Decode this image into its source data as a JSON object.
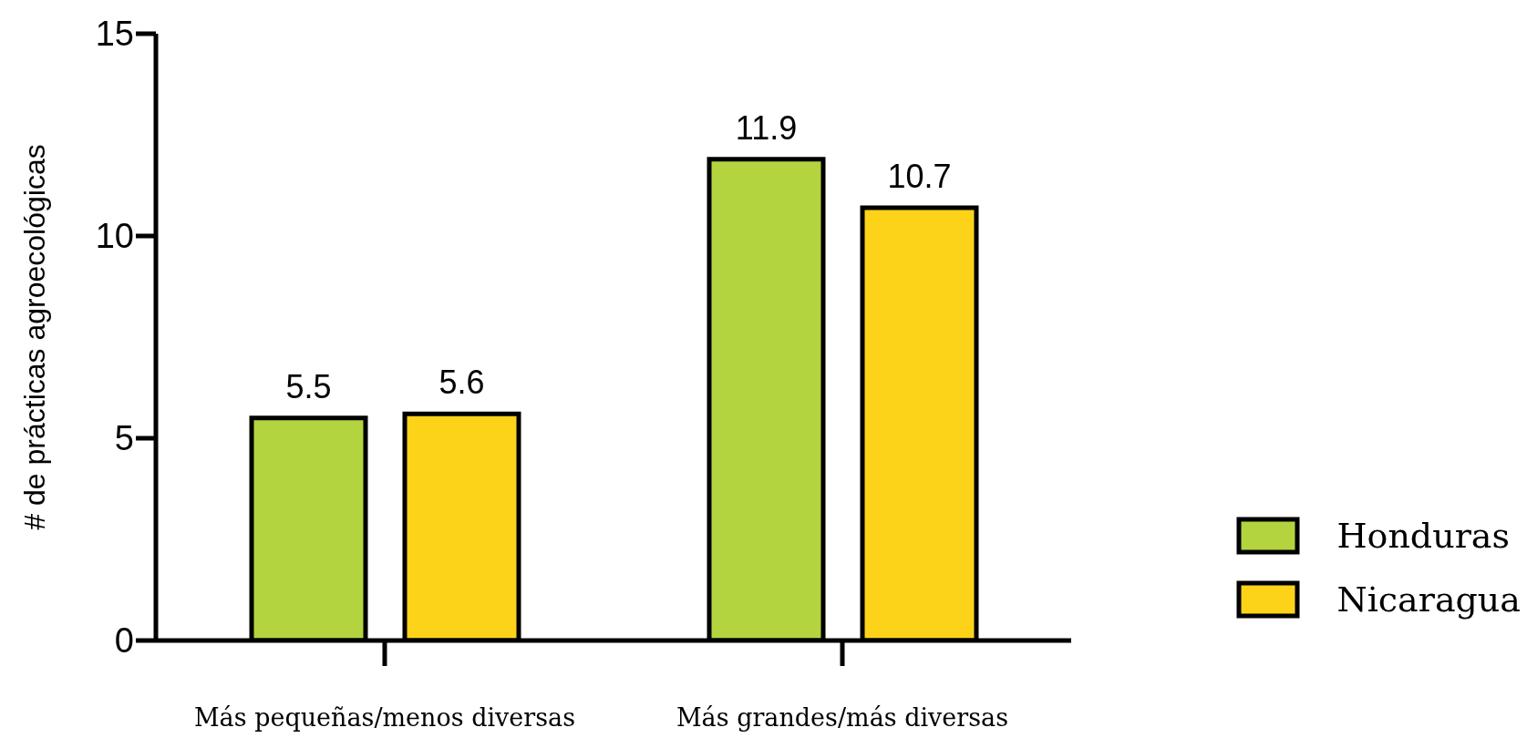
{
  "chart_data": {
    "type": "bar",
    "ylabel": "# de prácticas agroecológicas",
    "categories": [
      "Más pequeñas/menos diversas",
      "Más grandes/más diversas"
    ],
    "series": [
      {
        "name": "Honduras",
        "color": "#b3d43f",
        "values": [
          5.5,
          11.9
        ]
      },
      {
        "name": "Nicaragua",
        "color": "#fdd319",
        "values": [
          5.6,
          10.7
        ]
      }
    ],
    "ylim": [
      0,
      15
    ],
    "yticks": [
      0,
      5,
      10,
      15
    ],
    "grid": false,
    "legend": "right",
    "data_labels": true
  }
}
